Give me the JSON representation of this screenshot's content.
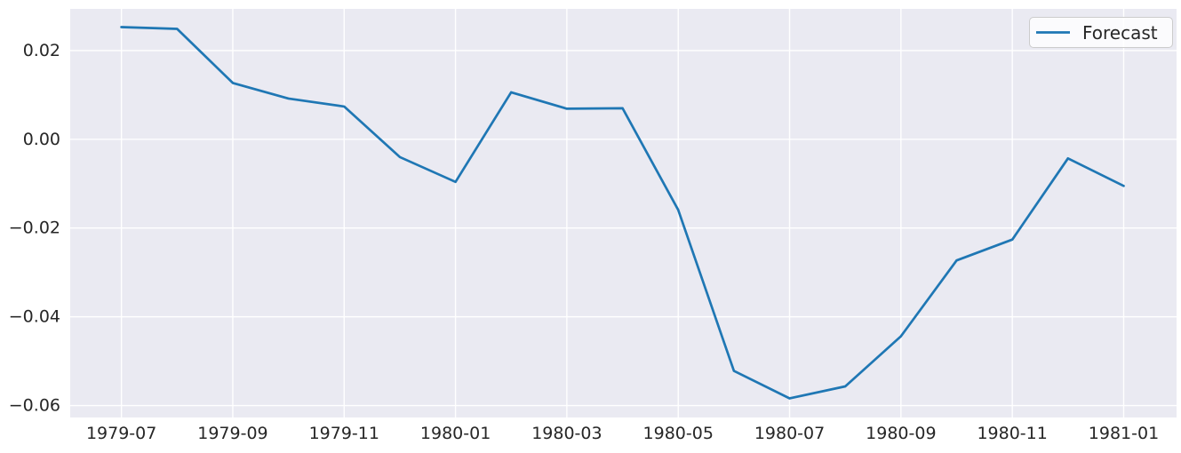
{
  "chart_data": {
    "type": "line",
    "title": "",
    "xlabel": "",
    "ylabel": "",
    "x": [
      "1979-07",
      "1979-08",
      "1979-09",
      "1979-10",
      "1979-11",
      "1979-12",
      "1980-01",
      "1980-02",
      "1980-03",
      "1980-04",
      "1980-05",
      "1980-06",
      "1980-07",
      "1980-08",
      "1980-09",
      "1980-10",
      "1980-11",
      "1980-12",
      "1981-01"
    ],
    "series": [
      {
        "name": "Forecast",
        "color": "#1f77b4",
        "values": [
          0.0253,
          0.0249,
          0.0127,
          0.0092,
          0.0074,
          -0.004,
          -0.0096,
          0.0106,
          0.0069,
          0.007,
          -0.0159,
          -0.0522,
          -0.0584,
          -0.0557,
          -0.0444,
          -0.0273,
          -0.0226,
          -0.0043,
          -0.0105
        ]
      }
    ],
    "xtick_indices": [
      0,
      2,
      4,
      6,
      8,
      10,
      12,
      14,
      16,
      18
    ],
    "xtick_labels": [
      "1979-07",
      "1979-09",
      "1979-11",
      "1980-01",
      "1980-03",
      "1980-05",
      "1980-07",
      "1980-09",
      "1980-11",
      "1981-01"
    ],
    "ytick_values": [
      0.02,
      0.0,
      -0.02,
      -0.04,
      -0.06
    ],
    "ytick_labels": [
      "0.02",
      "0.00",
      "−0.02",
      "−0.04",
      "−0.06"
    ],
    "xlim": [
      -0.92,
      18.95
    ],
    "ylim": [
      -0.0627,
      0.0294
    ],
    "grid": true,
    "legend": {
      "label": "Forecast",
      "position": "upper right"
    },
    "colors": {
      "line": "#1f77b4",
      "plot_background": "#eaeaf2",
      "grid": "#ffffff",
      "tick_text": "#262626",
      "legend_border": "#cccccc",
      "legend_background": "rgba(255,255,255,0.8)"
    }
  }
}
